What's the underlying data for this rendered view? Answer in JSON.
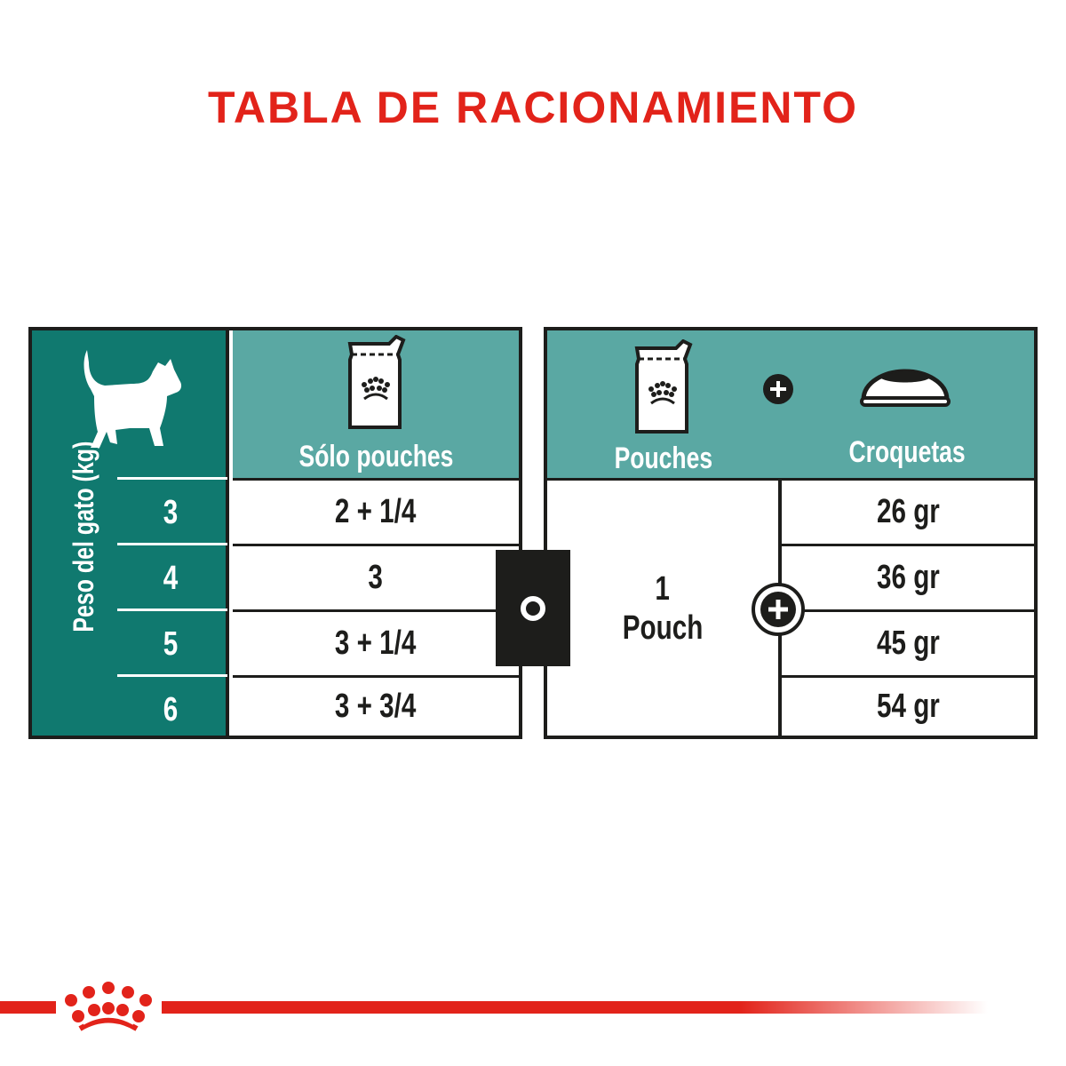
{
  "title": "TABLA DE RACIONAMIENTO",
  "colors": {
    "accent_red": "#e2231a",
    "dark_teal": "#10796f",
    "light_teal": "#5aa8a3",
    "border": "#1d1d1b"
  },
  "left_table": {
    "axis_label": "Peso del gato (kg)",
    "header": "Sólo pouches",
    "weights": [
      "3",
      "4",
      "5",
      "6"
    ],
    "pouches": [
      "2 + 1/4",
      "3",
      "3 + 1/4",
      "3 + 3/4"
    ]
  },
  "separator": "o",
  "right_table": {
    "header_pouches": "Pouches",
    "header_croquetas": "Croquetas",
    "pouch_amount": "1",
    "pouch_unit": "Pouch",
    "croquetas": [
      "26 gr",
      "36 gr",
      "45 gr",
      "54 gr"
    ]
  },
  "icons": [
    "cat-icon",
    "pouch-icon",
    "plus-icon",
    "bowl-icon",
    "royal-canin-crown-logo"
  ]
}
